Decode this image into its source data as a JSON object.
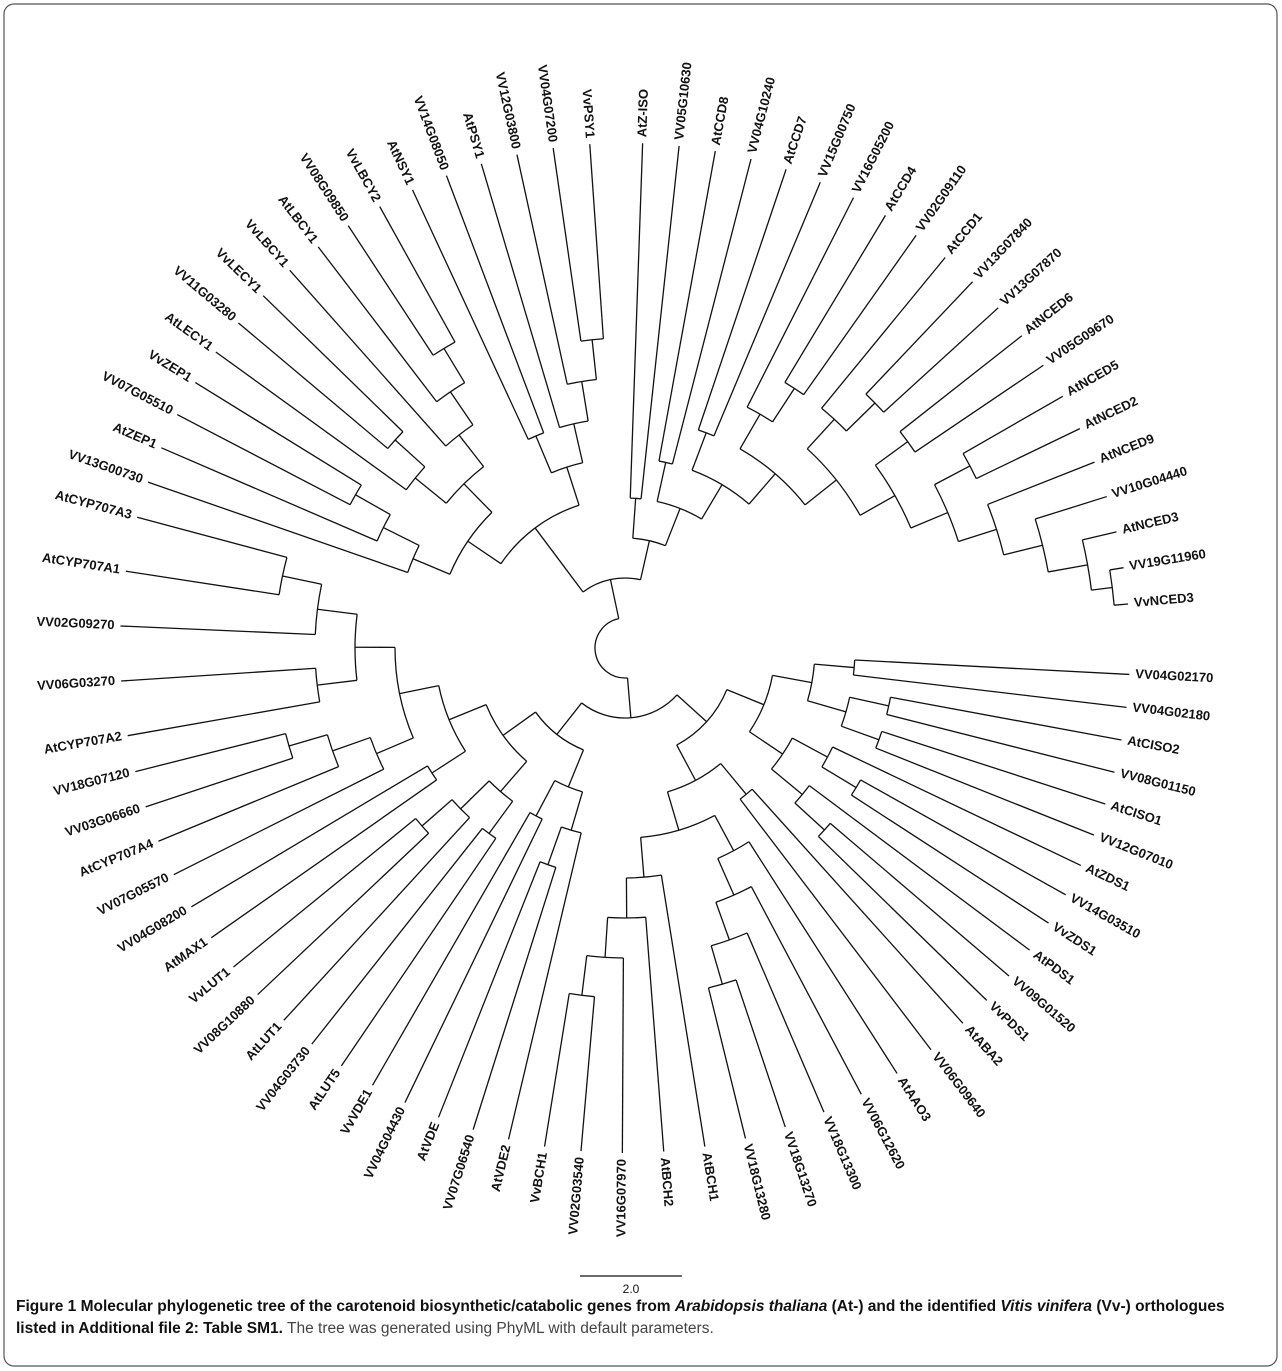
{
  "tree": {
    "leaves": [
      "AtZ-ISO",
      "VV05G10630",
      "AtCCD8",
      "VV04G10240",
      "AtCCD7",
      "VV15G00750",
      "VV16G05200",
      "AtCCD4",
      "VV02G09110",
      "AtCCD1",
      "VV13G07840",
      "VV13G07870",
      "AtNCED6",
      "VV05G09670",
      "AtNCED5",
      "AtNCED2",
      "AtNCED9",
      "VV10G04440",
      "AtNCED3",
      "VV19G11960",
      "VvNCED3",
      "VV04G02170",
      "VV04G02180",
      "AtCISO2",
      "VV08G01150",
      "AtCISO1",
      "VV12G07010",
      "AtZDS1",
      "VV14G03510",
      "VvZDS1",
      "AtPDS1",
      "VV09G01520",
      "VvPDS1",
      "AtABA2",
      "VV06G09640",
      "AtAAO3",
      "VV06G12620",
      "VV18G13300",
      "VV18G13270",
      "VV18G13280",
      "AtBCH1",
      "AtBCH2",
      "VV16G07970",
      "VV02G03540",
      "VvBCH1",
      "AtVDE2",
      "VV07G06540",
      "AtVDE",
      "VV04G04430",
      "VvVDE1",
      "AtLUT5",
      "VV04G03730",
      "AtLUT1",
      "VV08G10880",
      "VvLUT1",
      "AtMAX1",
      "VV04G08200",
      "VV07G05570",
      "AtCYP707A4",
      "VV03G06660",
      "VV18G07120",
      "AtCYP707A2",
      "VV06G03270",
      "VV02G09270",
      "AtCYP707A1",
      "AtCYP707A3",
      "VV13G00730",
      "AtZEP1",
      "VV07G05510",
      "VvZEP1",
      "AtLECY1",
      "VV11G03280",
      "VvLECY1",
      "VvLBCY1",
      "AtLBCY1",
      "VV08G09850",
      "VvLBCY2",
      "AtNSY1",
      "VV14G08050",
      "AtPSY1",
      "VV12G03800",
      "VV04G07200",
      "VvPSY1"
    ],
    "scale_label": "2.0"
  },
  "caption": {
    "parts": [
      "Figure 1 Molecular phylogenetic tree of the carotenoid biosynthetic/catabolic genes from ",
      "Arabidopsis thaliana",
      " (At-) and the identified ",
      "Vitis vinifera",
      " (Vv-) orthologues listed in Additional file 2: Table SM1.",
      " The tree was generated using PhyML with default parameters."
    ]
  }
}
